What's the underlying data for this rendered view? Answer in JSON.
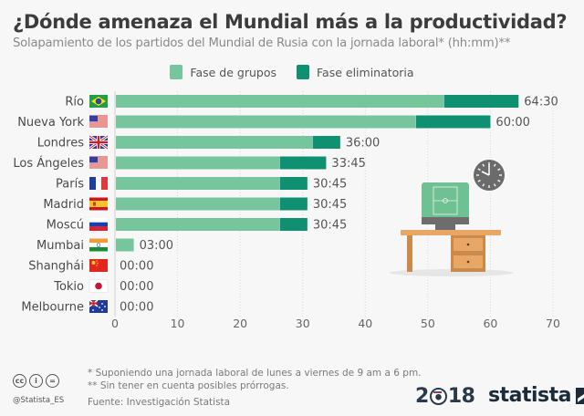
{
  "header": {
    "title": "¿Dónde amenaza el Mundial más a la productividad?",
    "subtitle": "Solapamiento de los partidos del Mundial de Rusia con la jornada laboral* (hh:mm)**"
  },
  "chart_data": {
    "type": "bar",
    "orientation": "horizontal",
    "stacked": true,
    "title": "¿Dónde amenaza el Mundial más a la productividad?",
    "subtitle": "Solapamiento de los partidos del Mundial de Rusia con la jornada laboral* (hh:mm)**",
    "xlabel": "",
    "ylabel": "",
    "xlim": [
      0,
      70
    ],
    "xticks": [
      0,
      10,
      20,
      30,
      40,
      50,
      60,
      70
    ],
    "grid": true,
    "legend_position": "top-center",
    "categories": [
      "Río",
      "Nueva York",
      "Londres",
      "Los Ángeles",
      "París",
      "Madrid",
      "Moscú",
      "Mumbai",
      "Shanghái",
      "Tokio",
      "Melbourne"
    ],
    "flags": [
      "brazil",
      "usa",
      "uk",
      "usa",
      "france",
      "spain",
      "russia",
      "india",
      "china",
      "japan",
      "australia"
    ],
    "series": [
      {
        "name": "Fase de grupos",
        "color": "#77c59c",
        "values": [
          52.5,
          48,
          31.5,
          26.25,
          26.25,
          26.25,
          26.25,
          3,
          0,
          0,
          0
        ]
      },
      {
        "name": "Fase eliminatoria",
        "color": "#0f9070",
        "values": [
          12,
          12,
          4.5,
          7.5,
          4.5,
          4.5,
          4.5,
          0,
          0,
          0,
          0
        ]
      }
    ],
    "totals": [
      64.5,
      60,
      36,
      33.75,
      30.75,
      30.75,
      30.75,
      3,
      0,
      0,
      0
    ],
    "data_labels": [
      "64:30",
      "60:00",
      "36:00",
      "33:45",
      "30:45",
      "30:45",
      "30:45",
      "03:00",
      "00:00",
      "00:00",
      "00:00"
    ]
  },
  "footer": {
    "note1": "*   Suponiendo una jornada laboral de lunes a viernes de 9 am a 6 pm.",
    "note2": "** Sin tener en cuenta posibles prórrogas.",
    "source": "Fuente: Investigación Statista",
    "handle": "@Statista_ES",
    "cc_icons": [
      "cc",
      "by",
      "nd"
    ],
    "wc_year_left": "2",
    "wc_year_right": "18",
    "brand": "statista"
  }
}
